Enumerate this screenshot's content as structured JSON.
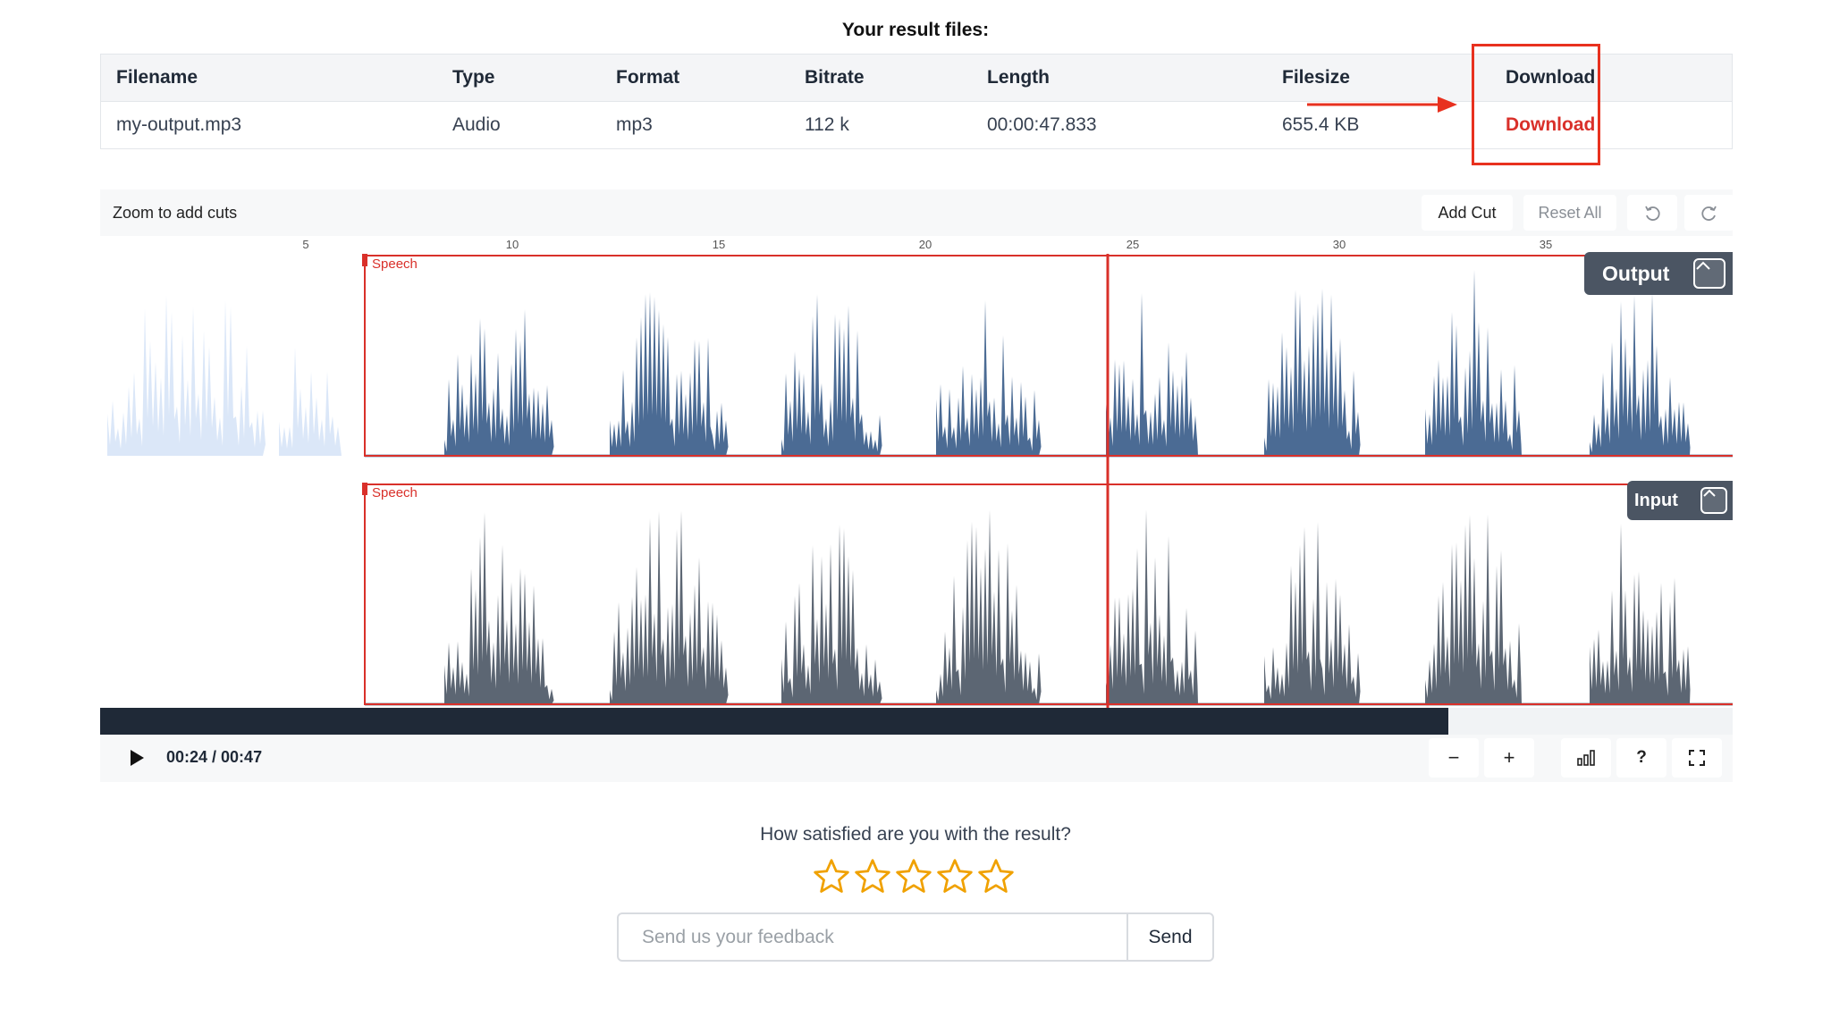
{
  "results": {
    "title": "Your result files:",
    "columns": [
      "Filename",
      "Type",
      "Format",
      "Bitrate",
      "Length",
      "Filesize",
      "Download"
    ],
    "rows": [
      {
        "filename": "my-output.mp3",
        "type": "Audio",
        "format": "mp3",
        "bitrate": "112 k",
        "length": "00:00:47.833",
        "filesize": "655.4 KB",
        "download": "Download"
      }
    ]
  },
  "editor": {
    "hint": "Zoom to add cuts",
    "add_cut": "Add Cut",
    "reset_all": "Reset All",
    "ruler_ticks": [
      "5",
      "10",
      "15",
      "20",
      "25",
      "30",
      "35"
    ],
    "region_label": "Speech",
    "tracks": {
      "output": "Output",
      "input": "Input"
    },
    "time": "00:24 / 00:47",
    "playback_fraction": 0.826,
    "controls": {
      "zoom_out": "−",
      "zoom_in": "+",
      "help": "?"
    }
  },
  "feedback": {
    "question": "How satisfied are you with the result?",
    "stars": 5,
    "placeholder": "Send us your feedback",
    "send": "Send"
  },
  "colors": {
    "accent_red": "#d9302a",
    "output_wave": "#4b6b94",
    "input_wave": "#5c6673",
    "preview_wave": "#dbe7f8",
    "star": "#f0a100",
    "dark": "#1f2937"
  }
}
